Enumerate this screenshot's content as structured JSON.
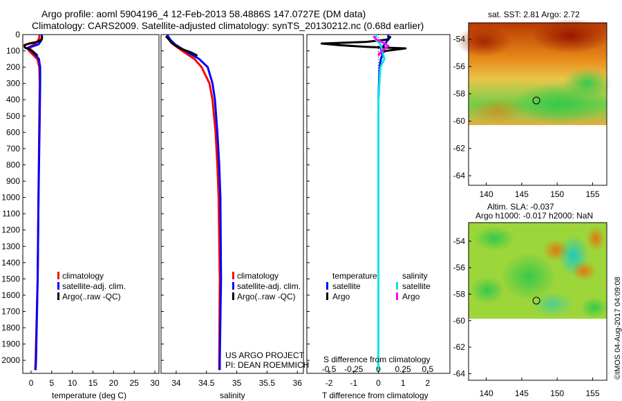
{
  "title": {
    "line1": "Argo profile: aoml 5904196_4 12-Feb-2013 58.4886S 147.0727E (DM data)",
    "line2": "Climatology: CARS2009. Satellite-adjusted climatology: synTS_20130212.nc (0.68d earlier)"
  },
  "colors": {
    "climatology": "#ff0000",
    "satellite": "#0000ff",
    "argo": "#000000",
    "salinity_satellite": "#00e6e6",
    "salinity_argo": "#ff00ff"
  },
  "legend": {
    "climatology": "climatology",
    "satellite_adj": "satellite-adj. clim.",
    "argo": "Argo(..raw -QC)",
    "temperature_header": "temperature",
    "salinity_header": "salinity",
    "satellite": "satellite",
    "argo_short": "Argo"
  },
  "project": {
    "line1": "US ARGO PROJECT",
    "line2": "PI: DEAN ROEMMICH"
  },
  "maps": {
    "sst_title": "sat. SST: 2.81  Argo: 2.72",
    "sla_title1": "Altim. SLA: -0.037",
    "sla_title2": "Argo h1000: -0.017  h2000: NaN",
    "lat_ticks": [
      "-54",
      "-56",
      "-58",
      "-60",
      "-62",
      "-64"
    ],
    "lon_ticks": [
      "140",
      "145",
      "150",
      "155"
    ],
    "marker": {
      "lon": 147.07,
      "lat": -58.49
    }
  },
  "stamp": "©IMOS 04-Aug-2017 04:09:08",
  "chart_data": [
    {
      "type": "line",
      "panel": "temperature",
      "xlabel": "temperature (deg C)",
      "ylabel": "",
      "xlim": [
        -2,
        31
      ],
      "ylim": [
        2080,
        0
      ],
      "x_ticks": [
        "0",
        "5",
        "10",
        "15",
        "20",
        "25",
        "30"
      ],
      "y_ticks": [
        "0",
        "100",
        "200",
        "300",
        "400",
        "500",
        "600",
        "700",
        "800",
        "900",
        "1000",
        "1100",
        "1200",
        "1300",
        "1400",
        "1500",
        "1600",
        "1700",
        "1800",
        "1900",
        "2000"
      ],
      "series": [
        {
          "name": "climatology",
          "depth": [
            0,
            20,
            40,
            60,
            80,
            100,
            150,
            200,
            300,
            500,
            1000,
            1500,
            2000,
            2060
          ],
          "values": [
            2.0,
            2.0,
            1.6,
            0.9,
            -0.8,
            -0.5,
            1.5,
            2.0,
            2.1,
            2.0,
            1.8,
            1.6,
            1.1,
            1.0
          ]
        },
        {
          "name": "satellite-adj. clim.",
          "depth": [
            0,
            20,
            40,
            60,
            80,
            100,
            150,
            200,
            300,
            500,
            1000,
            1500,
            2000,
            2060
          ],
          "values": [
            2.6,
            2.6,
            2.4,
            1.8,
            -0.5,
            0.2,
            1.9,
            2.2,
            2.2,
            2.1,
            1.8,
            1.6,
            1.2,
            1.1
          ]
        },
        {
          "name": "Argo(..raw -QC)",
          "depth": [
            10,
            30,
            45,
            55,
            65,
            80,
            100,
            130
          ],
          "values": [
            2.7,
            2.6,
            1.5,
            -0.5,
            -1.6,
            -1.5,
            0.3,
            1.6
          ]
        }
      ]
    },
    {
      "type": "line",
      "panel": "salinity",
      "xlabel": "salinity",
      "xlim": [
        33.75,
        36.1
      ],
      "ylim": [
        2080,
        0
      ],
      "x_ticks": [
        "34",
        "34.5",
        "35",
        "35.5",
        "36"
      ],
      "series": [
        {
          "name": "climatology",
          "depth": [
            0,
            30,
            60,
            100,
            150,
            200,
            300,
            400,
            600,
            800,
            1000,
            1500,
            2000,
            2060
          ],
          "values": [
            33.85,
            33.9,
            33.95,
            34.1,
            34.3,
            34.42,
            34.55,
            34.6,
            34.65,
            34.68,
            34.7,
            34.72,
            34.71,
            34.71
          ]
        },
        {
          "name": "satellite-adj. clim.",
          "depth": [
            0,
            30,
            60,
            100,
            150,
            200,
            300,
            400,
            600,
            800,
            1000,
            1500,
            2000,
            2060
          ],
          "values": [
            33.85,
            33.9,
            33.98,
            34.15,
            34.38,
            34.52,
            34.6,
            34.64,
            34.68,
            34.71,
            34.73,
            34.74,
            34.72,
            34.72
          ]
        },
        {
          "name": "Argo(..raw -QC)",
          "depth": [
            10,
            30,
            50,
            70,
            90,
            110,
            130
          ],
          "values": [
            33.83,
            33.88,
            33.92,
            34.0,
            34.1,
            34.25,
            34.35
          ]
        }
      ]
    },
    {
      "type": "line",
      "panel": "difference",
      "xlabel": "T difference from climatology",
      "xlabel_top": "S difference from climatology",
      "xlim": [
        -2.9,
        2.9
      ],
      "ylim": [
        2080,
        0
      ],
      "x_ticks": [
        "-2",
        "-1",
        "0",
        "1",
        "2"
      ],
      "x_ticks_top": [
        "-0.5",
        "-0.25",
        "0",
        "0.25",
        "0.5"
      ],
      "series": [
        {
          "name": "temperature satellite",
          "depth": [
            0,
            30,
            50,
            70,
            90,
            110,
            150,
            200,
            400,
            800,
            1200,
            1600,
            2060
          ],
          "values": [
            0.4,
            0.4,
            0.3,
            0.2,
            0.1,
            0.2,
            0.1,
            0.05,
            0.0,
            0.0,
            0.0,
            0.0,
            0.0
          ]
        },
        {
          "name": "temperature Argo",
          "depth": [
            10,
            30,
            45,
            55,
            65,
            75,
            85,
            100,
            120
          ],
          "values": [
            0.5,
            0.4,
            -0.5,
            -2.3,
            -1.6,
            -0.5,
            1.1,
            0.3,
            0.0
          ]
        },
        {
          "name": "salinity satellite",
          "depth": [
            0,
            30,
            60,
            100,
            150,
            200,
            400,
            800,
            1200,
            1600,
            2060
          ],
          "values": [
            -0.02,
            -0.03,
            0.02,
            0.04,
            0.06,
            0.02,
            0.0,
            0.0,
            0.0,
            0.0,
            0.0
          ]
        },
        {
          "name": "salinity Argo",
          "depth": [
            10,
            30,
            50,
            70,
            90,
            110,
            130
          ],
          "values": [
            -0.05,
            -0.02,
            0.05,
            0.1,
            0.06,
            0.02,
            0.0
          ]
        }
      ]
    }
  ]
}
